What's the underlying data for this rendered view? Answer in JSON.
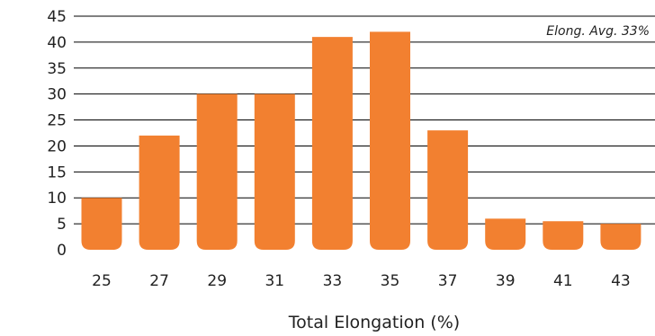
{
  "chart_data": {
    "type": "bar",
    "categories": [
      "25",
      "27",
      "29",
      "31",
      "33",
      "35",
      "37",
      "39",
      "41",
      "43"
    ],
    "values": [
      10,
      22,
      30,
      30,
      41,
      42,
      23,
      6,
      5.5,
      5
    ],
    "xlabel": "Total Elongation (%)",
    "ylabel": "",
    "ylim": [
      0,
      45
    ],
    "yticks": [
      0,
      5,
      10,
      15,
      20,
      25,
      30,
      35,
      40,
      45
    ],
    "grid": true,
    "legend": "none",
    "annotation": "Elong. Avg. 33%",
    "colors": {
      "bar": "#F28030",
      "grid": "#000000",
      "text": "#222222"
    }
  }
}
